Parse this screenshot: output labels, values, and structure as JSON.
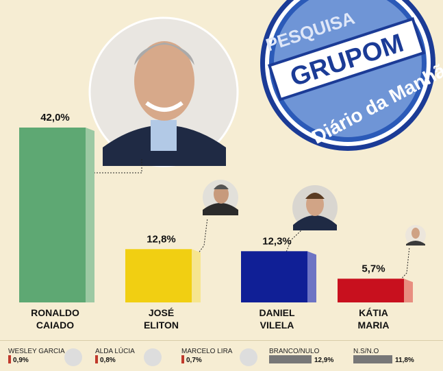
{
  "chart_data": {
    "type": "bar",
    "categories": [
      "RONALDO\nCAIADO",
      "JOSÉ\nELITON",
      "DANIEL\nVILELA",
      "KÁTIA\nMARIA"
    ],
    "values": [
      42.0,
      12.8,
      12.3,
      5.7
    ],
    "value_labels": [
      "42,0%",
      "12,8%",
      "12,3%",
      "5,7%"
    ],
    "colors": [
      "#5ea873",
      "#f1cf12",
      "#101f96",
      "#c8101e"
    ],
    "side_colors": [
      "#9cc9a3",
      "#f6e58f",
      "#6d74c4",
      "#e88e80"
    ],
    "ylim": [
      0,
      42.0
    ]
  },
  "footer": {
    "items": [
      {
        "name": "WESLEY GARCIA",
        "value": "0,9%"
      },
      {
        "name": "ALDA LÚCIA",
        "value": "0,8%"
      },
      {
        "name": "MARCELO LIRA",
        "value": "0,7%"
      },
      {
        "name": "BRANCO/NULO",
        "value": "12,9%"
      },
      {
        "name": "N.S/N.O",
        "value": "11,8%"
      }
    ],
    "gray_values": [
      12.9,
      11.8
    ]
  },
  "logo": {
    "top_text": "PESQUISA",
    "main_text": "GRUPOM",
    "bottom_text": "Diário da Manhã"
  }
}
